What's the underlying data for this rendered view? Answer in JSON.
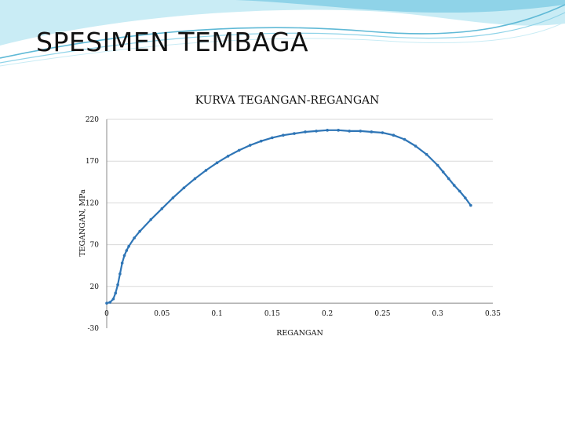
{
  "slide": {
    "title": "SPESIMEN TEMBAGA"
  },
  "colors": {
    "header_light": "#c9ecf5",
    "header_mid": "#8fd3e8",
    "header_line": "#5fb9d6",
    "series": "#2e75b6",
    "grid": "#d9d9d9",
    "axis": "#888888",
    "text": "#111111"
  },
  "chart_data": {
    "type": "scatter",
    "title": "KURVA TEGANGAN-REGANGAN",
    "xlabel": "REGANGAN",
    "ylabel": "TEGANGAN, MPa",
    "xlim": [
      0,
      0.35
    ],
    "ylim": [
      -30,
      220
    ],
    "x_ticks": [
      0,
      0.05,
      0.1,
      0.15,
      0.2,
      0.25,
      0.3,
      0.35
    ],
    "x_tick_labels": [
      "0",
      "0.05",
      "0.1",
      "0.15",
      "0.2",
      "0.25",
      "0.3",
      "0.35"
    ],
    "y_ticks": [
      220,
      170,
      120,
      70,
      20,
      -30
    ],
    "y_tick_labels": [
      "220",
      "170",
      "120",
      "70",
      "20",
      "-30"
    ],
    "grid": "horizontal",
    "legend": "none",
    "series": [
      {
        "x": [
          0,
          0.003,
          0.006,
          0.008,
          0.01,
          0.012,
          0.014,
          0.016,
          0.018,
          0.02,
          0.025,
          0.03,
          0.04,
          0.05,
          0.06,
          0.07,
          0.08,
          0.09,
          0.1,
          0.11,
          0.12,
          0.13,
          0.14,
          0.15,
          0.16,
          0.17,
          0.18,
          0.19,
          0.2,
          0.21,
          0.22,
          0.23,
          0.24,
          0.25,
          0.26,
          0.27,
          0.28,
          0.29,
          0.3,
          0.305,
          0.31,
          0.315,
          0.32,
          0.325,
          0.33
        ],
        "y": [
          0,
          1,
          5,
          12,
          22,
          35,
          48,
          57,
          63,
          68,
          78,
          86,
          100,
          113,
          126,
          138,
          149,
          159,
          168,
          176,
          183,
          189,
          194,
          198,
          201,
          203,
          205,
          206,
          207,
          207,
          206,
          206,
          205,
          204,
          201,
          196,
          188,
          178,
          165,
          157,
          149,
          141,
          134,
          126,
          117
        ]
      }
    ]
  }
}
